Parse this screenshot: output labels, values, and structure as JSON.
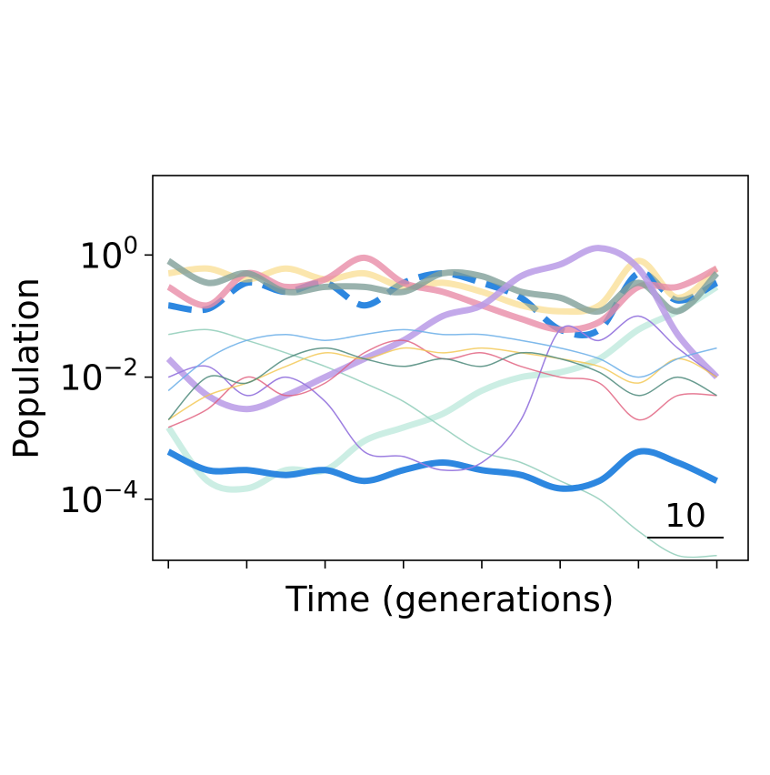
{
  "chart_data": {
    "type": "line",
    "title": "",
    "xlabel": "Time (generations)",
    "ylabel": "Population",
    "yscale": "log",
    "ylim": [
      1e-05,
      20
    ],
    "xlim": [
      -2,
      74
    ],
    "x_tick_count": 8,
    "y_ticks": [
      {
        "base": "10",
        "exp": "0",
        "value": 1
      },
      {
        "base": "10",
        "exp": "−2",
        "value": 0.01
      },
      {
        "base": "10",
        "exp": "−4",
        "value": 0.0001
      }
    ],
    "scale_bar": {
      "label": "10",
      "length": 10
    },
    "grid": false,
    "legend": "none",
    "x": [
      0,
      5,
      10,
      15,
      20,
      25,
      30,
      35,
      40,
      45,
      50,
      55,
      60,
      65,
      70
    ],
    "series": [
      {
        "color": "#88c9b4",
        "width": 1.5,
        "dash": false,
        "opacity": 0.8,
        "values": [
          0.05,
          0.06,
          0.04,
          0.025,
          0.015,
          0.008,
          0.004,
          0.0015,
          0.0006,
          0.0004,
          0.0002,
          0.0001,
          3e-05,
          1.2e-05,
          1.2e-05
        ]
      },
      {
        "color": "#8fd9c4",
        "width": 7,
        "dash": false,
        "opacity": 0.45,
        "values": [
          0.0015,
          0.0002,
          0.00015,
          0.0003,
          0.0003,
          0.0009,
          0.0015,
          0.0025,
          0.006,
          0.01,
          0.012,
          0.02,
          0.06,
          0.12,
          0.3
        ]
      },
      {
        "color": "#2d87e0",
        "width": 7,
        "dash": false,
        "opacity": 1,
        "values": [
          0.0006,
          0.0003,
          0.0003,
          0.00025,
          0.0003,
          0.0002,
          0.0003,
          0.0004,
          0.0003,
          0.00025,
          0.00015,
          0.0002,
          0.0006,
          0.0004,
          0.0002
        ]
      },
      {
        "color": "#2d87e0",
        "width": 7,
        "dash": true,
        "opacity": 1,
        "values": [
          0.15,
          0.13,
          0.35,
          0.25,
          0.35,
          0.15,
          0.35,
          0.5,
          0.35,
          0.2,
          0.06,
          0.06,
          0.5,
          0.18,
          0.35
        ]
      },
      {
        "color": "#f7d26a",
        "width": 7,
        "dash": false,
        "opacity": 0.55,
        "values": [
          0.5,
          0.6,
          0.4,
          0.6,
          0.4,
          0.5,
          0.3,
          0.35,
          0.25,
          0.15,
          0.12,
          0.15,
          0.8,
          0.2,
          0.6
        ]
      },
      {
        "color": "#e98ca8",
        "width": 7,
        "dash": false,
        "opacity": 0.8,
        "values": [
          0.3,
          0.15,
          0.5,
          0.3,
          0.4,
          0.9,
          0.35,
          0.25,
          0.15,
          0.09,
          0.06,
          0.08,
          0.3,
          0.3,
          0.6
        ]
      },
      {
        "color": "#7f9f98",
        "width": 7,
        "dash": false,
        "opacity": 0.8,
        "values": [
          0.8,
          0.35,
          0.5,
          0.25,
          0.3,
          0.3,
          0.25,
          0.5,
          0.45,
          0.25,
          0.2,
          0.12,
          0.35,
          0.12,
          0.5
        ]
      },
      {
        "color": "#b99ae6",
        "width": 7,
        "dash": false,
        "opacity": 0.85,
        "values": [
          0.02,
          0.005,
          0.003,
          0.005,
          0.01,
          0.02,
          0.04,
          0.1,
          0.15,
          0.45,
          0.7,
          1.3,
          0.6,
          0.05,
          0.01
        ]
      },
      {
        "color": "#9c7ee0",
        "width": 1.5,
        "dash": false,
        "opacity": 1,
        "values": [
          0.01,
          0.015,
          0.005,
          0.01,
          0.004,
          0.0006,
          0.0005,
          0.0003,
          0.0004,
          0.002,
          0.06,
          0.04,
          0.1,
          0.03,
          0.01
        ]
      },
      {
        "color": "#e05b7a",
        "width": 1.5,
        "dash": false,
        "opacity": 0.8,
        "values": [
          0.0015,
          0.003,
          0.01,
          0.005,
          0.008,
          0.025,
          0.04,
          0.02,
          0.025,
          0.015,
          0.01,
          0.008,
          0.002,
          0.005,
          0.005
        ]
      },
      {
        "color": "#f2c64d",
        "width": 1.5,
        "dash": false,
        "opacity": 0.8,
        "values": [
          0.002,
          0.005,
          0.008,
          0.015,
          0.025,
          0.02,
          0.03,
          0.025,
          0.03,
          0.025,
          0.02,
          0.015,
          0.008,
          0.02,
          0.01
        ]
      },
      {
        "color": "#4d8a7b",
        "width": 1.5,
        "dash": false,
        "opacity": 0.85,
        "values": [
          0.002,
          0.01,
          0.008,
          0.02,
          0.03,
          0.02,
          0.015,
          0.02,
          0.015,
          0.025,
          0.02,
          0.012,
          0.005,
          0.01,
          0.005
        ]
      },
      {
        "color": "#6aaee8",
        "width": 1.5,
        "dash": false,
        "opacity": 0.85,
        "values": [
          0.006,
          0.02,
          0.04,
          0.05,
          0.04,
          0.05,
          0.06,
          0.05,
          0.05,
          0.04,
          0.03,
          0.02,
          0.01,
          0.02,
          0.03
        ]
      }
    ]
  }
}
